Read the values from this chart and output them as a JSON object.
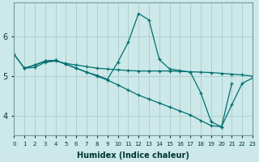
{
  "xlabel": "Humidex (Indice chaleur)",
  "bg_color": "#cce8e8",
  "grid_color": "#b0d0d0",
  "line_color": "#007070",
  "x_min": 0,
  "x_max": 23,
  "y_min": 3.5,
  "y_max": 6.85,
  "yticks": [
    4,
    5,
    6
  ],
  "lines": [
    {
      "x": [
        0,
        1,
        2,
        3,
        4,
        5,
        6,
        7,
        8,
        9,
        10,
        11,
        12,
        13,
        14,
        15,
        16,
        17,
        18,
        19,
        20,
        21,
        22,
        23
      ],
      "y": [
        5.55,
        5.2,
        5.22,
        5.35,
        5.38,
        5.32,
        5.28,
        5.24,
        5.2,
        5.18,
        5.16,
        5.14,
        5.13,
        5.13,
        5.13,
        5.13,
        5.12,
        5.11,
        5.1,
        5.09,
        5.07,
        5.05,
        5.03,
        5.0
      ]
    },
    {
      "x": [
        0,
        1,
        2,
        3,
        4,
        5,
        6,
        7,
        8,
        9,
        10,
        11,
        12,
        13,
        14,
        15,
        16,
        17,
        18,
        19,
        20,
        21
      ],
      "y": [
        5.55,
        5.2,
        5.28,
        5.38,
        5.4,
        5.3,
        5.2,
        5.1,
        5.0,
        4.9,
        4.78,
        4.65,
        4.52,
        4.42,
        4.32,
        4.22,
        4.12,
        4.02,
        3.88,
        3.75,
        3.72,
        4.82
      ]
    },
    {
      "x": [
        1,
        2,
        3,
        4,
        5,
        6,
        7,
        8,
        9,
        10,
        11,
        12,
        13,
        14,
        15,
        16,
        17,
        18,
        19,
        20,
        21,
        22,
        23
      ],
      "y": [
        5.2,
        5.28,
        5.38,
        5.4,
        5.3,
        5.2,
        5.1,
        5.02,
        4.92,
        5.35,
        5.85,
        6.58,
        6.42,
        5.42,
        5.18,
        5.14,
        5.1,
        4.58,
        3.85,
        3.72,
        4.28,
        4.82,
        4.95
      ]
    }
  ]
}
